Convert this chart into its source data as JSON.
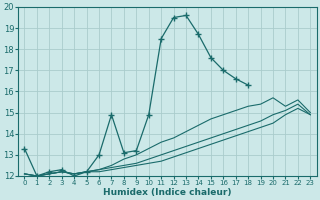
{
  "xlabel": "Humidex (Indice chaleur)",
  "xlim": [
    -0.5,
    23.5
  ],
  "ylim": [
    12,
    20
  ],
  "xticks": [
    0,
    1,
    2,
    3,
    4,
    5,
    6,
    7,
    8,
    9,
    10,
    11,
    12,
    13,
    14,
    15,
    16,
    17,
    18,
    19,
    20,
    21,
    22,
    23
  ],
  "yticks": [
    12,
    13,
    14,
    15,
    16,
    17,
    18,
    19,
    20
  ],
  "bg_color": "#cce8e8",
  "grid_color": "#aacccc",
  "line_color": "#1a6b6b",
  "lines": [
    {
      "x": [
        0,
        1,
        2,
        3,
        4,
        5,
        6,
        7,
        8,
        9,
        10,
        11,
        12,
        13,
        14,
        15,
        16,
        17,
        18
      ],
      "y": [
        13.3,
        12.0,
        12.2,
        12.3,
        12.0,
        12.2,
        13.0,
        14.9,
        13.1,
        13.2,
        14.9,
        18.5,
        19.5,
        19.6,
        18.7,
        17.6,
        17.0,
        16.6,
        16.3
      ],
      "marker": true
    },
    {
      "x": [
        0,
        1,
        2,
        3,
        4,
        5,
        6,
        7,
        8,
        9,
        10,
        11,
        12,
        13,
        14,
        15,
        16,
        17,
        18,
        19,
        20,
        21,
        22,
        23
      ],
      "y": [
        12.1,
        12.0,
        12.1,
        12.2,
        12.1,
        12.2,
        12.3,
        12.5,
        12.8,
        13.0,
        13.3,
        13.6,
        13.8,
        14.1,
        14.4,
        14.7,
        14.9,
        15.1,
        15.3,
        15.4,
        15.7,
        15.3,
        15.6,
        15.0
      ],
      "marker": false
    },
    {
      "x": [
        0,
        1,
        2,
        3,
        4,
        5,
        6,
        7,
        8,
        9,
        10,
        11,
        12,
        13,
        14,
        15,
        16,
        17,
        18,
        19,
        20,
        21,
        22,
        23
      ],
      "y": [
        12.1,
        12.0,
        12.1,
        12.2,
        12.1,
        12.2,
        12.3,
        12.4,
        12.5,
        12.6,
        12.8,
        13.0,
        13.2,
        13.4,
        13.6,
        13.8,
        14.0,
        14.2,
        14.4,
        14.6,
        14.9,
        15.1,
        15.4,
        14.9
      ],
      "marker": false
    },
    {
      "x": [
        0,
        1,
        2,
        3,
        4,
        5,
        6,
        7,
        8,
        9,
        10,
        11,
        12,
        13,
        14,
        15,
        16,
        17,
        18,
        19,
        20,
        21,
        22,
        23
      ],
      "y": [
        12.1,
        12.0,
        12.1,
        12.2,
        12.1,
        12.2,
        12.2,
        12.3,
        12.4,
        12.5,
        12.6,
        12.7,
        12.9,
        13.1,
        13.3,
        13.5,
        13.7,
        13.9,
        14.1,
        14.3,
        14.5,
        14.9,
        15.2,
        14.9
      ],
      "marker": false
    }
  ]
}
